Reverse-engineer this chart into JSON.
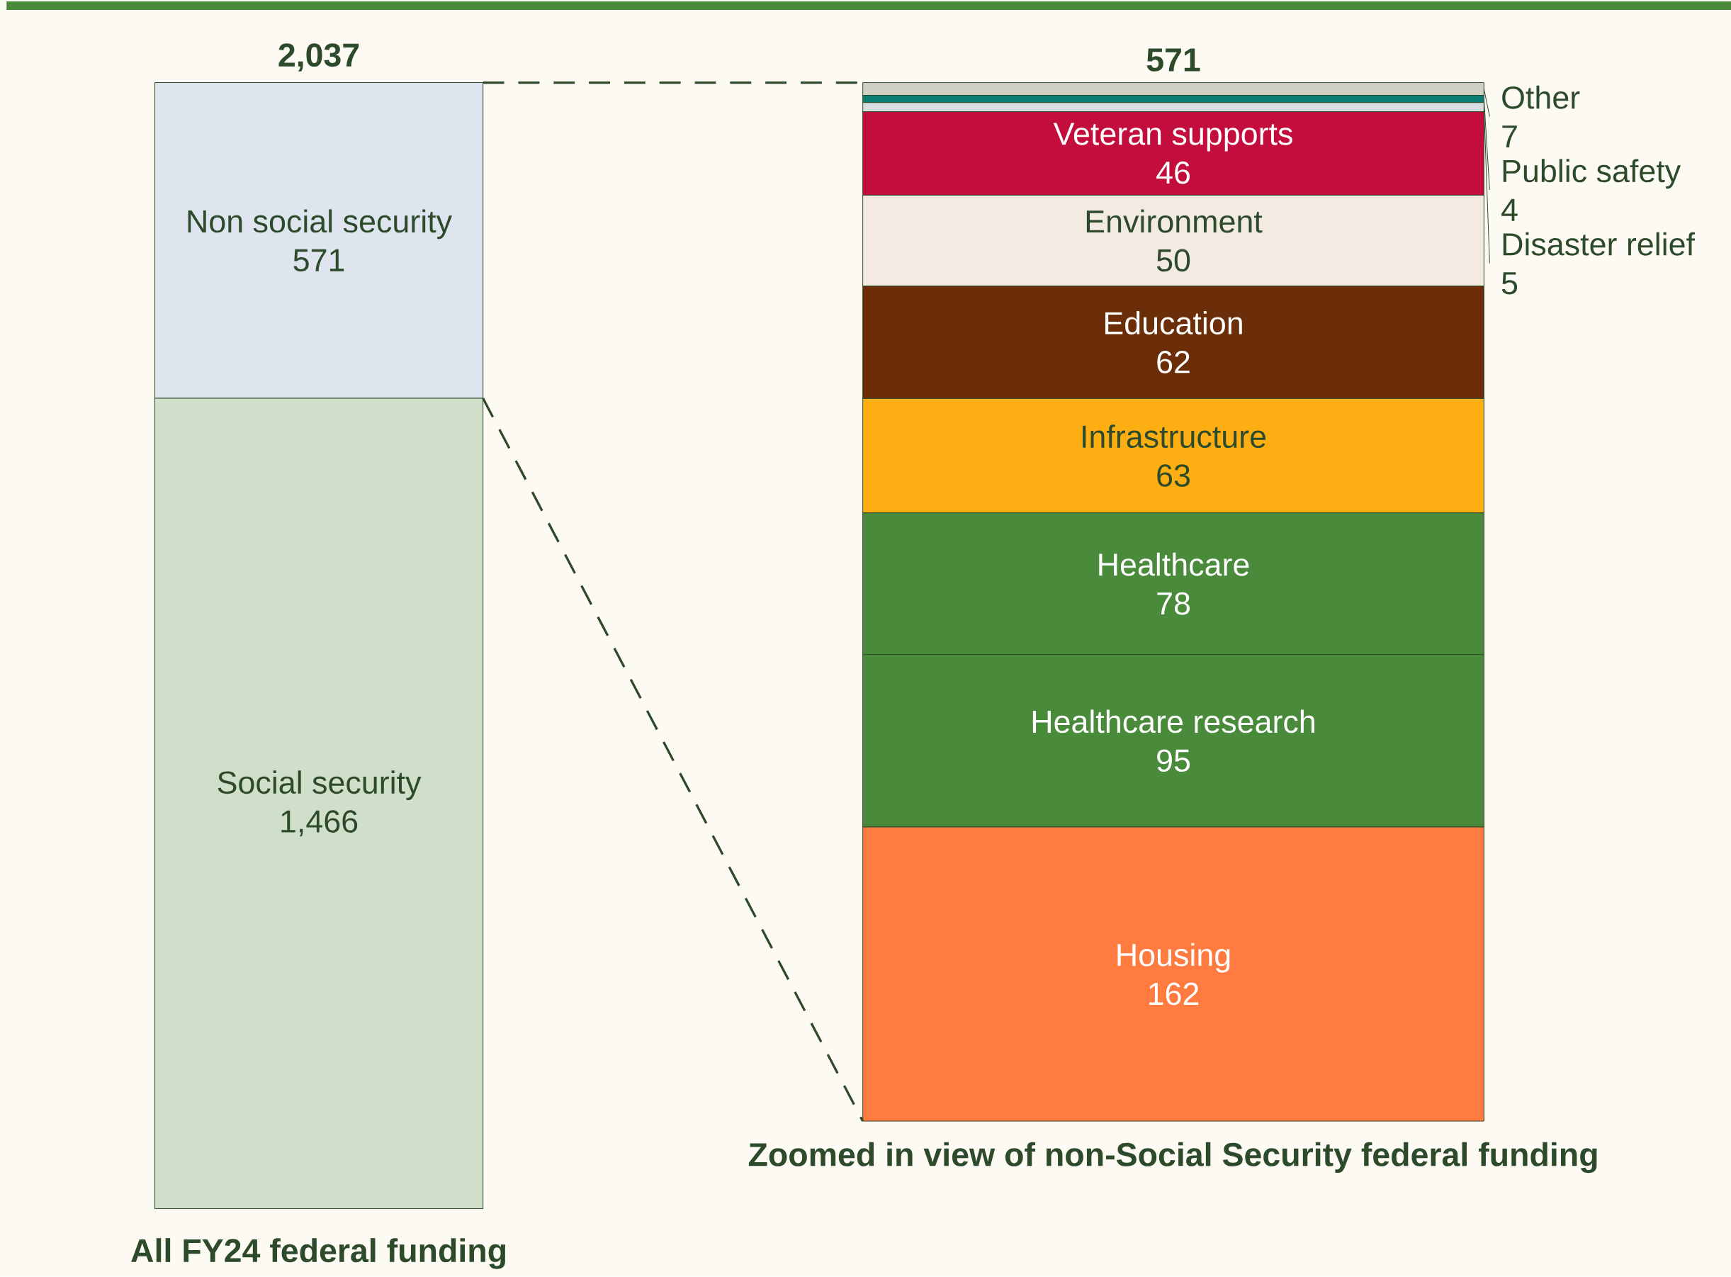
{
  "chart_data": [
    {
      "type": "bar",
      "stacked": true,
      "categories": [
        null
      ],
      "xlabel": "All FY24 federal funding",
      "totals": [
        "2,037"
      ],
      "series": [
        {
          "name": "Social security",
          "color": "#cfdfca",
          "values": [
            1466
          ],
          "value_labels": [
            "1,466"
          ]
        },
        {
          "name": "Non social security",
          "color": "#dfe5ee",
          "values": [
            571
          ],
          "value_labels": [
            "571"
          ]
        }
      ]
    },
    {
      "type": "bar",
      "stacked": true,
      "categories": [
        null
      ],
      "xlabel": "Zoomed in view of non-Social Security federal funding",
      "totals": [
        "571"
      ],
      "series": [
        {
          "name": "Housing",
          "color": "#ff7b3f",
          "values": [
            162
          ],
          "value_labels": [
            "162"
          ]
        },
        {
          "name": "Healthcare research",
          "color": "#4a8a3b",
          "values": [
            95
          ],
          "value_labels": [
            "95"
          ]
        },
        {
          "name": "Healthcare",
          "color": "#4a8a3b",
          "values": [
            78
          ],
          "value_labels": [
            "78"
          ]
        },
        {
          "name": "Infrastructure",
          "color": "#fdae12",
          "values": [
            63
          ],
          "value_labels": [
            "63"
          ]
        },
        {
          "name": "Education",
          "color": "#6b2e08",
          "values": [
            62
          ],
          "value_labels": [
            "62"
          ]
        },
        {
          "name": "Environment",
          "color": "#f3ebe2",
          "values": [
            50
          ],
          "value_labels": [
            "50"
          ]
        },
        {
          "name": "Veteran supports",
          "color": "#c30e3d",
          "values": [
            46
          ],
          "value_labels": [
            "46"
          ]
        },
        {
          "name": "Disaster relief",
          "color": "#d9dde2",
          "values": [
            5
          ],
          "value_labels": [
            "5"
          ]
        },
        {
          "name": "Public safety",
          "color": "#0b7f73",
          "values": [
            4
          ],
          "value_labels": [
            "4"
          ]
        },
        {
          "name": "Other",
          "color": "#cfcfc4",
          "values": [
            7
          ],
          "value_labels": [
            "7"
          ]
        }
      ]
    }
  ]
}
